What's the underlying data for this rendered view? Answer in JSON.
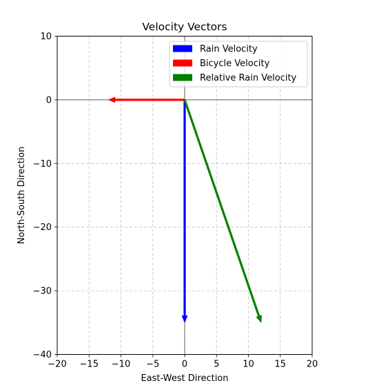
{
  "chart_data": {
    "type": "quiver",
    "title": "Velocity Vectors",
    "xlabel": "East-West Direction",
    "ylabel": "North-South Direction",
    "xlim": [
      -20,
      20
    ],
    "ylim": [
      -40,
      10
    ],
    "xticks": [
      -20,
      -15,
      -10,
      -5,
      0,
      5,
      10,
      15,
      20
    ],
    "yticks": [
      -40,
      -30,
      -20,
      -10,
      0,
      10
    ],
    "xtick_labels": [
      "−20",
      "−15",
      "−10",
      "−5",
      "0",
      "5",
      "10",
      "15",
      "20"
    ],
    "ytick_labels": [
      "−40",
      "−30",
      "−20",
      "−10",
      "0",
      "10"
    ],
    "grid": true,
    "grid_style": "dashed",
    "reference_lines": [
      0
    ],
    "legend_position": "upper right",
    "series": [
      {
        "name": "Rain Velocity",
        "color": "#0000ff",
        "origin": [
          0,
          0
        ],
        "vector": [
          0,
          -35
        ]
      },
      {
        "name": "Bicycle Velocity",
        "color": "#ff0000",
        "origin": [
          0,
          0
        ],
        "vector": [
          -12,
          0
        ]
      },
      {
        "name": "Relative Rain Velocity",
        "color": "#008000",
        "origin": [
          0,
          0
        ],
        "vector": [
          12,
          -35
        ]
      }
    ]
  }
}
